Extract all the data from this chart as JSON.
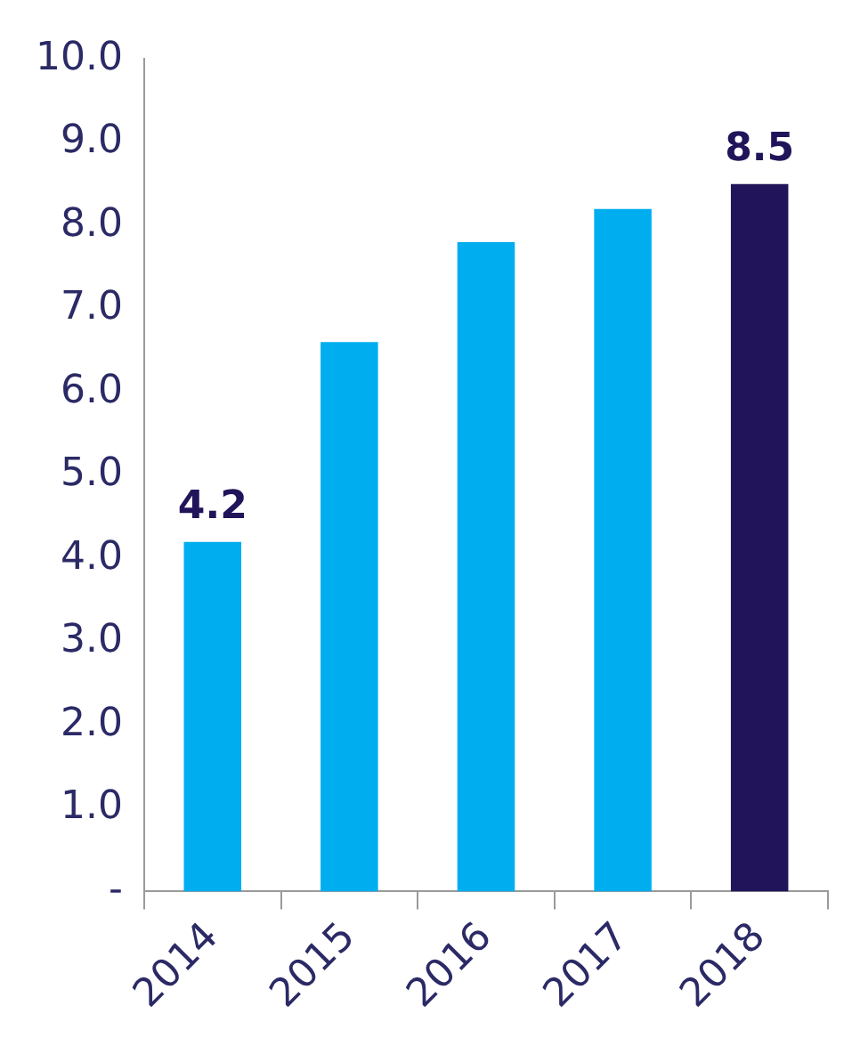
{
  "chart_data": {
    "type": "bar",
    "categories": [
      "2014",
      "2015",
      "2016",
      "2017",
      "2018"
    ],
    "values": [
      4.2,
      6.6,
      7.8,
      8.2,
      8.5
    ],
    "colors": [
      "#00aeef",
      "#00aeef",
      "#00aeef",
      "#00aeef",
      "#21145a"
    ],
    "value_labels": [
      "4.2",
      null,
      null,
      null,
      "8.5"
    ],
    "ylim": [
      0,
      10
    ],
    "yticks": [
      {
        "value": 0,
        "label": "-"
      },
      {
        "value": 1,
        "label": "1.0"
      },
      {
        "value": 2,
        "label": "2.0"
      },
      {
        "value": 3,
        "label": "3.0"
      },
      {
        "value": 4,
        "label": "4.0"
      },
      {
        "value": 5,
        "label": "5.0"
      },
      {
        "value": 6,
        "label": "6.0"
      },
      {
        "value": 7,
        "label": "7.0"
      },
      {
        "value": 8,
        "label": "8.0"
      },
      {
        "value": 9,
        "label": "9.0"
      },
      {
        "value": 10,
        "label": "10.0"
      }
    ]
  }
}
